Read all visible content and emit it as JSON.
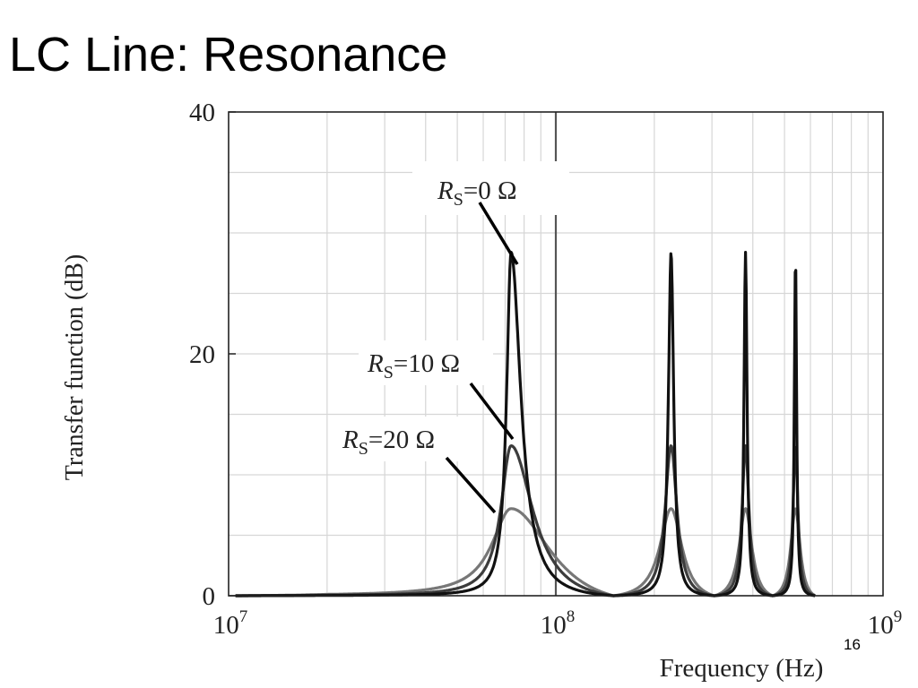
{
  "slide": {
    "title": "LC Line: Resonance",
    "page_number": "16"
  },
  "chart_data": {
    "type": "line",
    "title": "",
    "xlabel": "Frequency (Hz)",
    "ylabel": "Transfer function (dB)",
    "xscale": "log",
    "xlim": [
      10000000,
      1000000000
    ],
    "ylim": [
      0,
      40
    ],
    "grid": true,
    "legend": "none",
    "y_ticks": [
      {
        "value": 0,
        "label": "0"
      },
      {
        "value": 20,
        "label": "20"
      },
      {
        "value": 40,
        "label": "40"
      }
    ],
    "x_ticks": [
      {
        "value": 10000000,
        "base": "10",
        "exp": "7"
      },
      {
        "value": 100000000,
        "base": "10",
        "exp": "8"
      },
      {
        "value": 1000000000,
        "base": "10",
        "exp": "9"
      }
    ],
    "colors": {
      "rs0": "#111111",
      "rs10": "#3c3c3c",
      "rs20": "#777777",
      "grid": "#d6d6d6",
      "marker_line": "#555555"
    },
    "resonance_frequencies_hz": [
      73000000,
      225000000,
      380000000,
      540000000
    ],
    "zero_frequencies_hz": [
      10500000,
      150000000,
      305000000,
      460000000,
      620000000
    ],
    "series": [
      {
        "label_main": "R",
        "label_sub": "S",
        "label_rest": "=0 Ω",
        "resistance_ohm": 0,
        "peak_values_db": [
          28.4,
          28.4,
          28.4,
          28.4
        ],
        "peak_width": 0.22,
        "color": "#111111"
      },
      {
        "label_main": "R",
        "label_sub": "S",
        "label_rest": "=10 Ω",
        "resistance_ohm": 10,
        "peak_values_db": [
          12.4,
          12.4,
          12.4,
          12.4
        ],
        "peak_width": 0.5,
        "color": "#3c3c3c"
      },
      {
        "label_main": "R",
        "label_sub": "S",
        "label_rest": "=20 Ω",
        "resistance_ohm": 20,
        "peak_values_db": [
          7.2,
          7.2,
          7.2,
          7.2
        ],
        "peak_width": 0.95,
        "color": "#777777"
      }
    ]
  }
}
